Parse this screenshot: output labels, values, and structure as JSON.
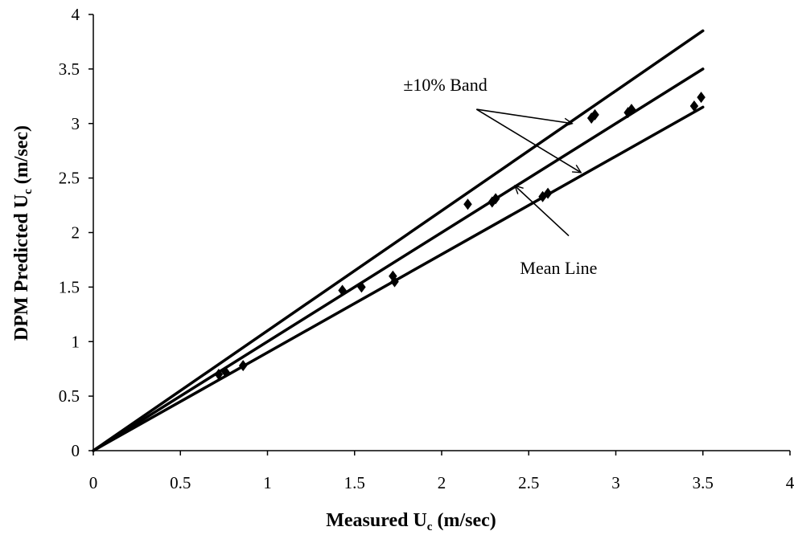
{
  "chart_data": {
    "type": "scatter",
    "title": "",
    "xlabel": {
      "main": "Measured U",
      "sub": "c",
      "unit": " (m/sec)"
    },
    "ylabel": {
      "main": "DPM Predicted U",
      "sub": "c",
      "unit": " (m/sec)"
    },
    "xlim": [
      0,
      4
    ],
    "ylim": [
      0,
      4
    ],
    "x_ticks": [
      "0",
      "0.5",
      "1",
      "1.5",
      "2",
      "2.5",
      "3",
      "3.5",
      "4"
    ],
    "y_ticks": [
      "0",
      "0.5",
      "1",
      "1.5",
      "2",
      "2.5",
      "3",
      "3.5",
      "4"
    ],
    "grid": false,
    "legend": "none",
    "series": [
      {
        "type": "scatter",
        "marker": "diamond",
        "color": "#000000",
        "x": [
          0.72,
          0.76,
          0.86,
          1.43,
          1.54,
          1.72,
          1.73,
          2.15,
          2.29,
          2.31,
          2.58,
          2.61,
          2.86,
          2.88,
          3.07,
          3.09,
          3.45,
          3.49
        ],
        "y": [
          0.7,
          0.72,
          0.78,
          1.47,
          1.5,
          1.6,
          1.55,
          2.26,
          2.28,
          2.31,
          2.33,
          2.36,
          3.05,
          3.08,
          3.1,
          3.13,
          3.16,
          3.24
        ]
      }
    ],
    "lines": [
      {
        "role": "upper-band",
        "x": [
          0,
          3.5
        ],
        "y": [
          0,
          3.85
        ],
        "color": "#000000"
      },
      {
        "role": "mean",
        "x": [
          0,
          3.5
        ],
        "y": [
          0,
          3.5
        ],
        "color": "#000000"
      },
      {
        "role": "lower-band",
        "x": [
          0,
          3.5
        ],
        "y": [
          0,
          3.15
        ],
        "color": "#000000"
      }
    ],
    "annotations": [
      {
        "text": "±10% Band",
        "anchor": {
          "x": 1.78,
          "y": 3.3
        },
        "arrow_tail": {
          "x": 2.2,
          "y": 3.13
        },
        "arrow_heads": [
          {
            "x": 2.75,
            "y": 3.0
          },
          {
            "x": 2.8,
            "y": 2.55
          }
        ]
      },
      {
        "text": "Mean Line",
        "anchor": {
          "x": 2.45,
          "y": 1.62
        },
        "arrow_tail": {
          "x": 2.73,
          "y": 1.97
        },
        "arrow_heads": [
          {
            "x": 2.42,
            "y": 2.43
          }
        ]
      }
    ]
  }
}
